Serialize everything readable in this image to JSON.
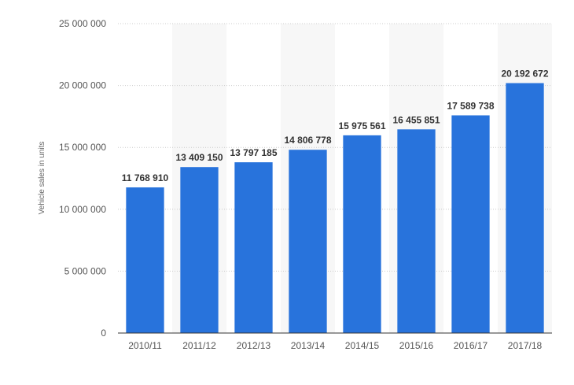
{
  "chart_data": {
    "type": "bar",
    "title": "",
    "xlabel": "",
    "ylabel": "Vehicle sales in units",
    "categories": [
      "2010/11",
      "2011/12",
      "2012/13",
      "2013/14",
      "2014/15",
      "2015/16",
      "2016/17",
      "2017/18"
    ],
    "values": [
      11768910,
      13409150,
      13797185,
      14806778,
      15975561,
      16455851,
      17589738,
      20192672
    ],
    "value_labels": [
      "11 768 910",
      "13 409 150",
      "13 797 185",
      "14 806 778",
      "15 975 561",
      "16 455 851",
      "17 589 738",
      "20 192 672"
    ],
    "ylim": [
      0,
      25000000
    ],
    "yticks": [
      0,
      5000000,
      10000000,
      15000000,
      20000000,
      25000000
    ],
    "ytick_labels": [
      "0",
      "5 000 000",
      "10 000 000",
      "15 000 000",
      "20 000 000",
      "25 000 000"
    ],
    "grid": true,
    "legend": "none",
    "colors": {
      "bar": "#2873dc",
      "alt_band": "#f7f7f7",
      "grid": "#cccccc",
      "axis": "#333333"
    }
  }
}
